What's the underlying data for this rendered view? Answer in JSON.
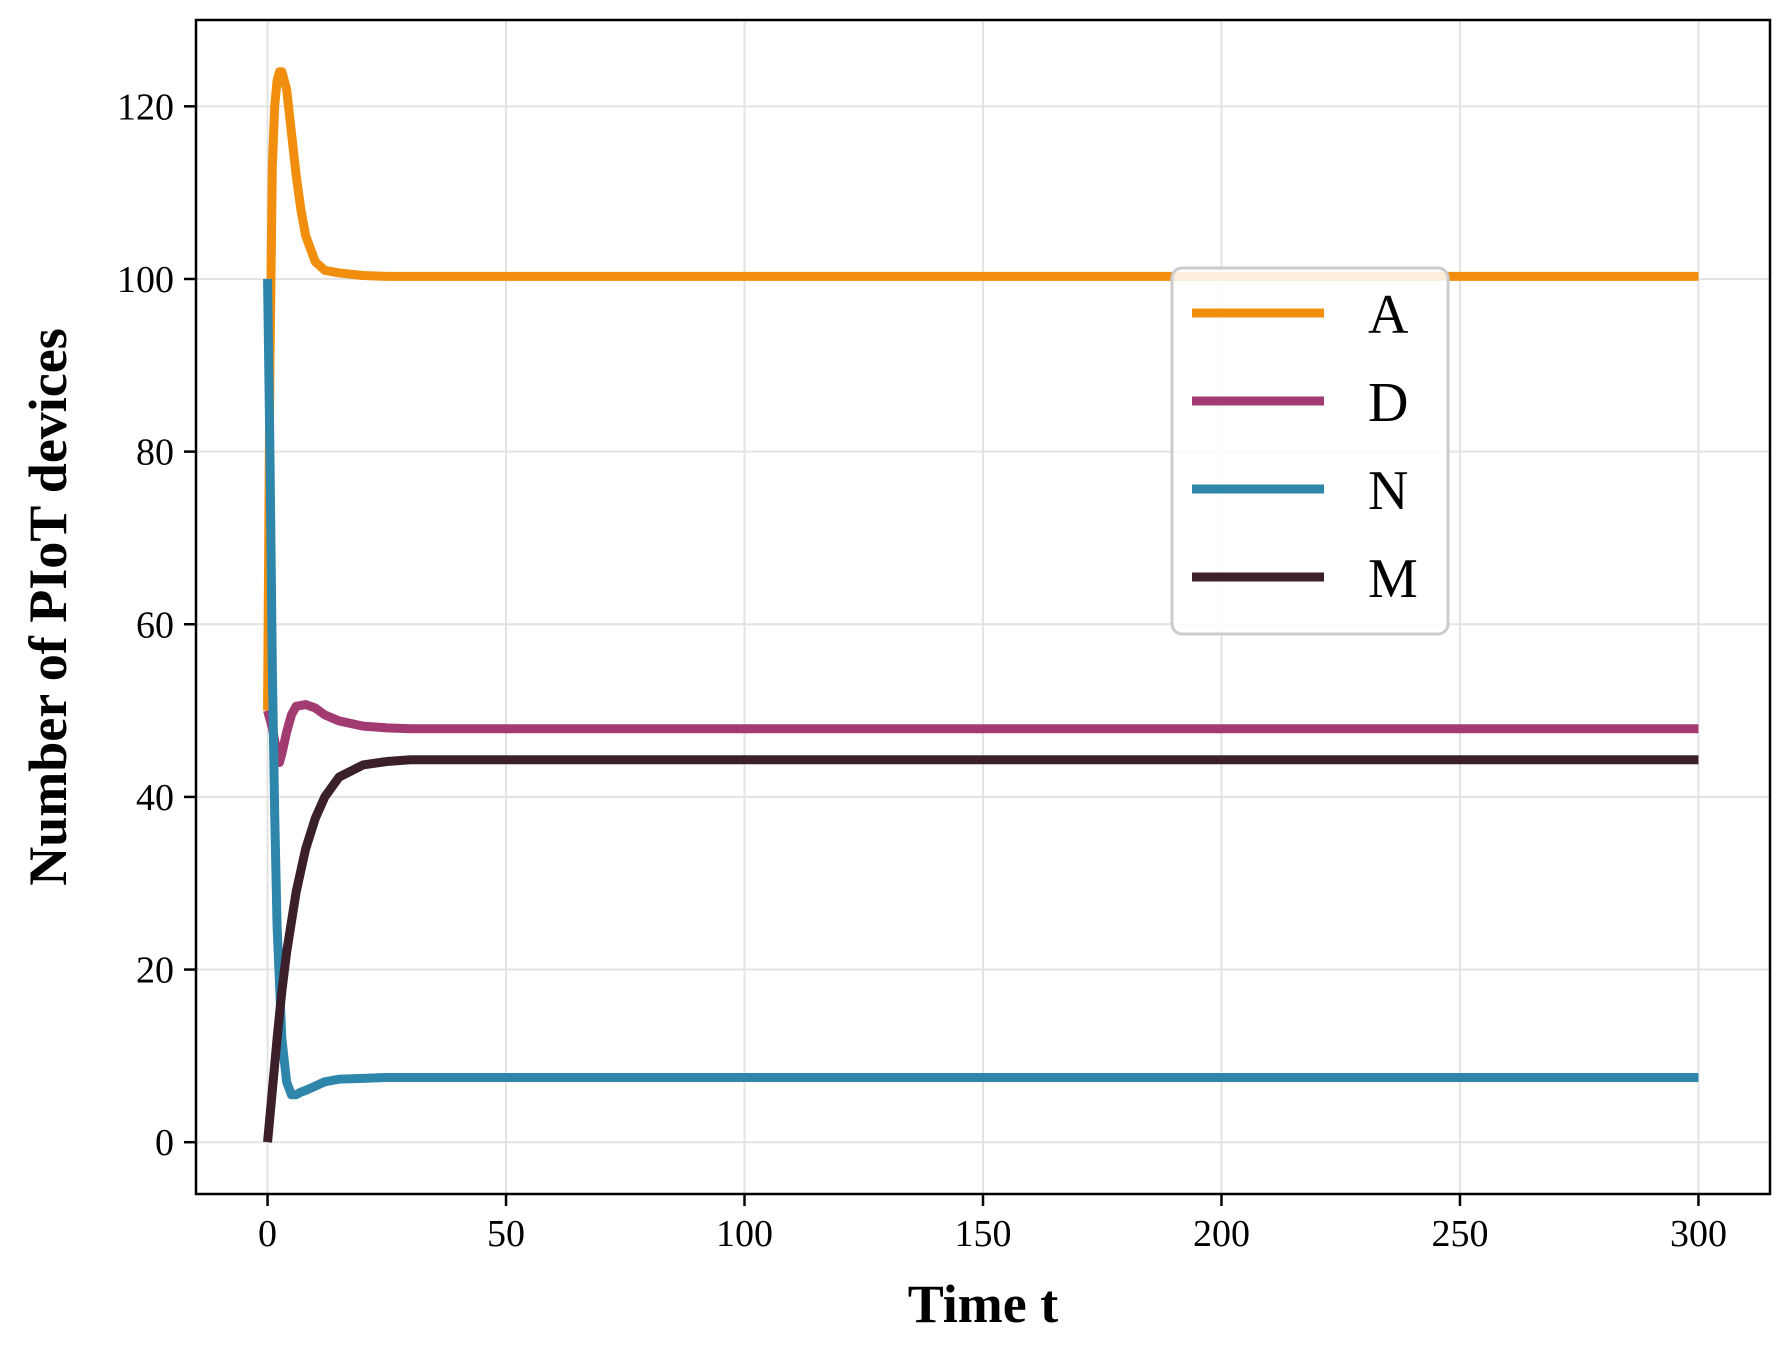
{
  "chart_data": {
    "type": "line",
    "xlabel": "Time t",
    "ylabel": "Number of PIoT devices",
    "xlim": [
      -15,
      315
    ],
    "ylim": [
      -6,
      130
    ],
    "xticks": [
      0,
      50,
      100,
      150,
      200,
      250,
      300
    ],
    "yticks": [
      0,
      20,
      40,
      60,
      80,
      100,
      120
    ],
    "grid": true,
    "legend_position": "upper-right",
    "series": [
      {
        "name": "A",
        "color": "#F28E0E",
        "x": [
          0,
          0.5,
          1,
          1.5,
          2,
          2.5,
          3,
          4,
          5,
          6,
          7,
          8,
          10,
          12,
          15,
          20,
          25,
          30,
          40,
          60,
          100,
          150,
          200,
          250,
          300
        ],
        "y": [
          50,
          90,
          113,
          120,
          123,
          124,
          124,
          122,
          117,
          112,
          108,
          105,
          102,
          101,
          100.7,
          100.4,
          100.3,
          100.3,
          100.3,
          100.3,
          100.3,
          100.3,
          100.3,
          100.3,
          100.3
        ]
      },
      {
        "name": "D",
        "color": "#A23B72",
        "x": [
          0,
          1,
          2,
          2.5,
          3,
          4,
          5,
          6,
          8,
          10,
          12,
          15,
          20,
          25,
          30,
          40,
          60,
          100,
          150,
          200,
          250,
          300
        ],
        "y": [
          50,
          48,
          45,
          44,
          45,
          47.5,
          49.5,
          50.5,
          50.7,
          50.3,
          49.5,
          48.8,
          48.2,
          48,
          47.9,
          47.9,
          47.9,
          47.9,
          47.9,
          47.9,
          47.9,
          47.9
        ]
      },
      {
        "name": "N",
        "color": "#2E86AB",
        "x": [
          0,
          0.5,
          1,
          1.5,
          2,
          3,
          4,
          5,
          6,
          7,
          8,
          10,
          12,
          15,
          20,
          25,
          30,
          40,
          60,
          100,
          150,
          200,
          250,
          300
        ],
        "y": [
          100,
          80,
          55,
          38,
          25,
          12,
          7,
          5.5,
          5.5,
          5.8,
          6,
          6.5,
          7,
          7.3,
          7.4,
          7.5,
          7.5,
          7.5,
          7.5,
          7.5,
          7.5,
          7.5,
          7.5,
          7.5
        ]
      },
      {
        "name": "M",
        "color": "#3B1F2B",
        "x": [
          0,
          1,
          2,
          3,
          4,
          5,
          6,
          8,
          10,
          12,
          15,
          20,
          25,
          30,
          40,
          60,
          100,
          150,
          200,
          250,
          300
        ],
        "y": [
          0,
          6,
          12,
          17.5,
          22,
          25.5,
          29,
          34,
          37.5,
          40,
          42.3,
          43.7,
          44.1,
          44.3,
          44.3,
          44.3,
          44.3,
          44.3,
          44.3,
          44.3,
          44.3
        ]
      }
    ]
  }
}
